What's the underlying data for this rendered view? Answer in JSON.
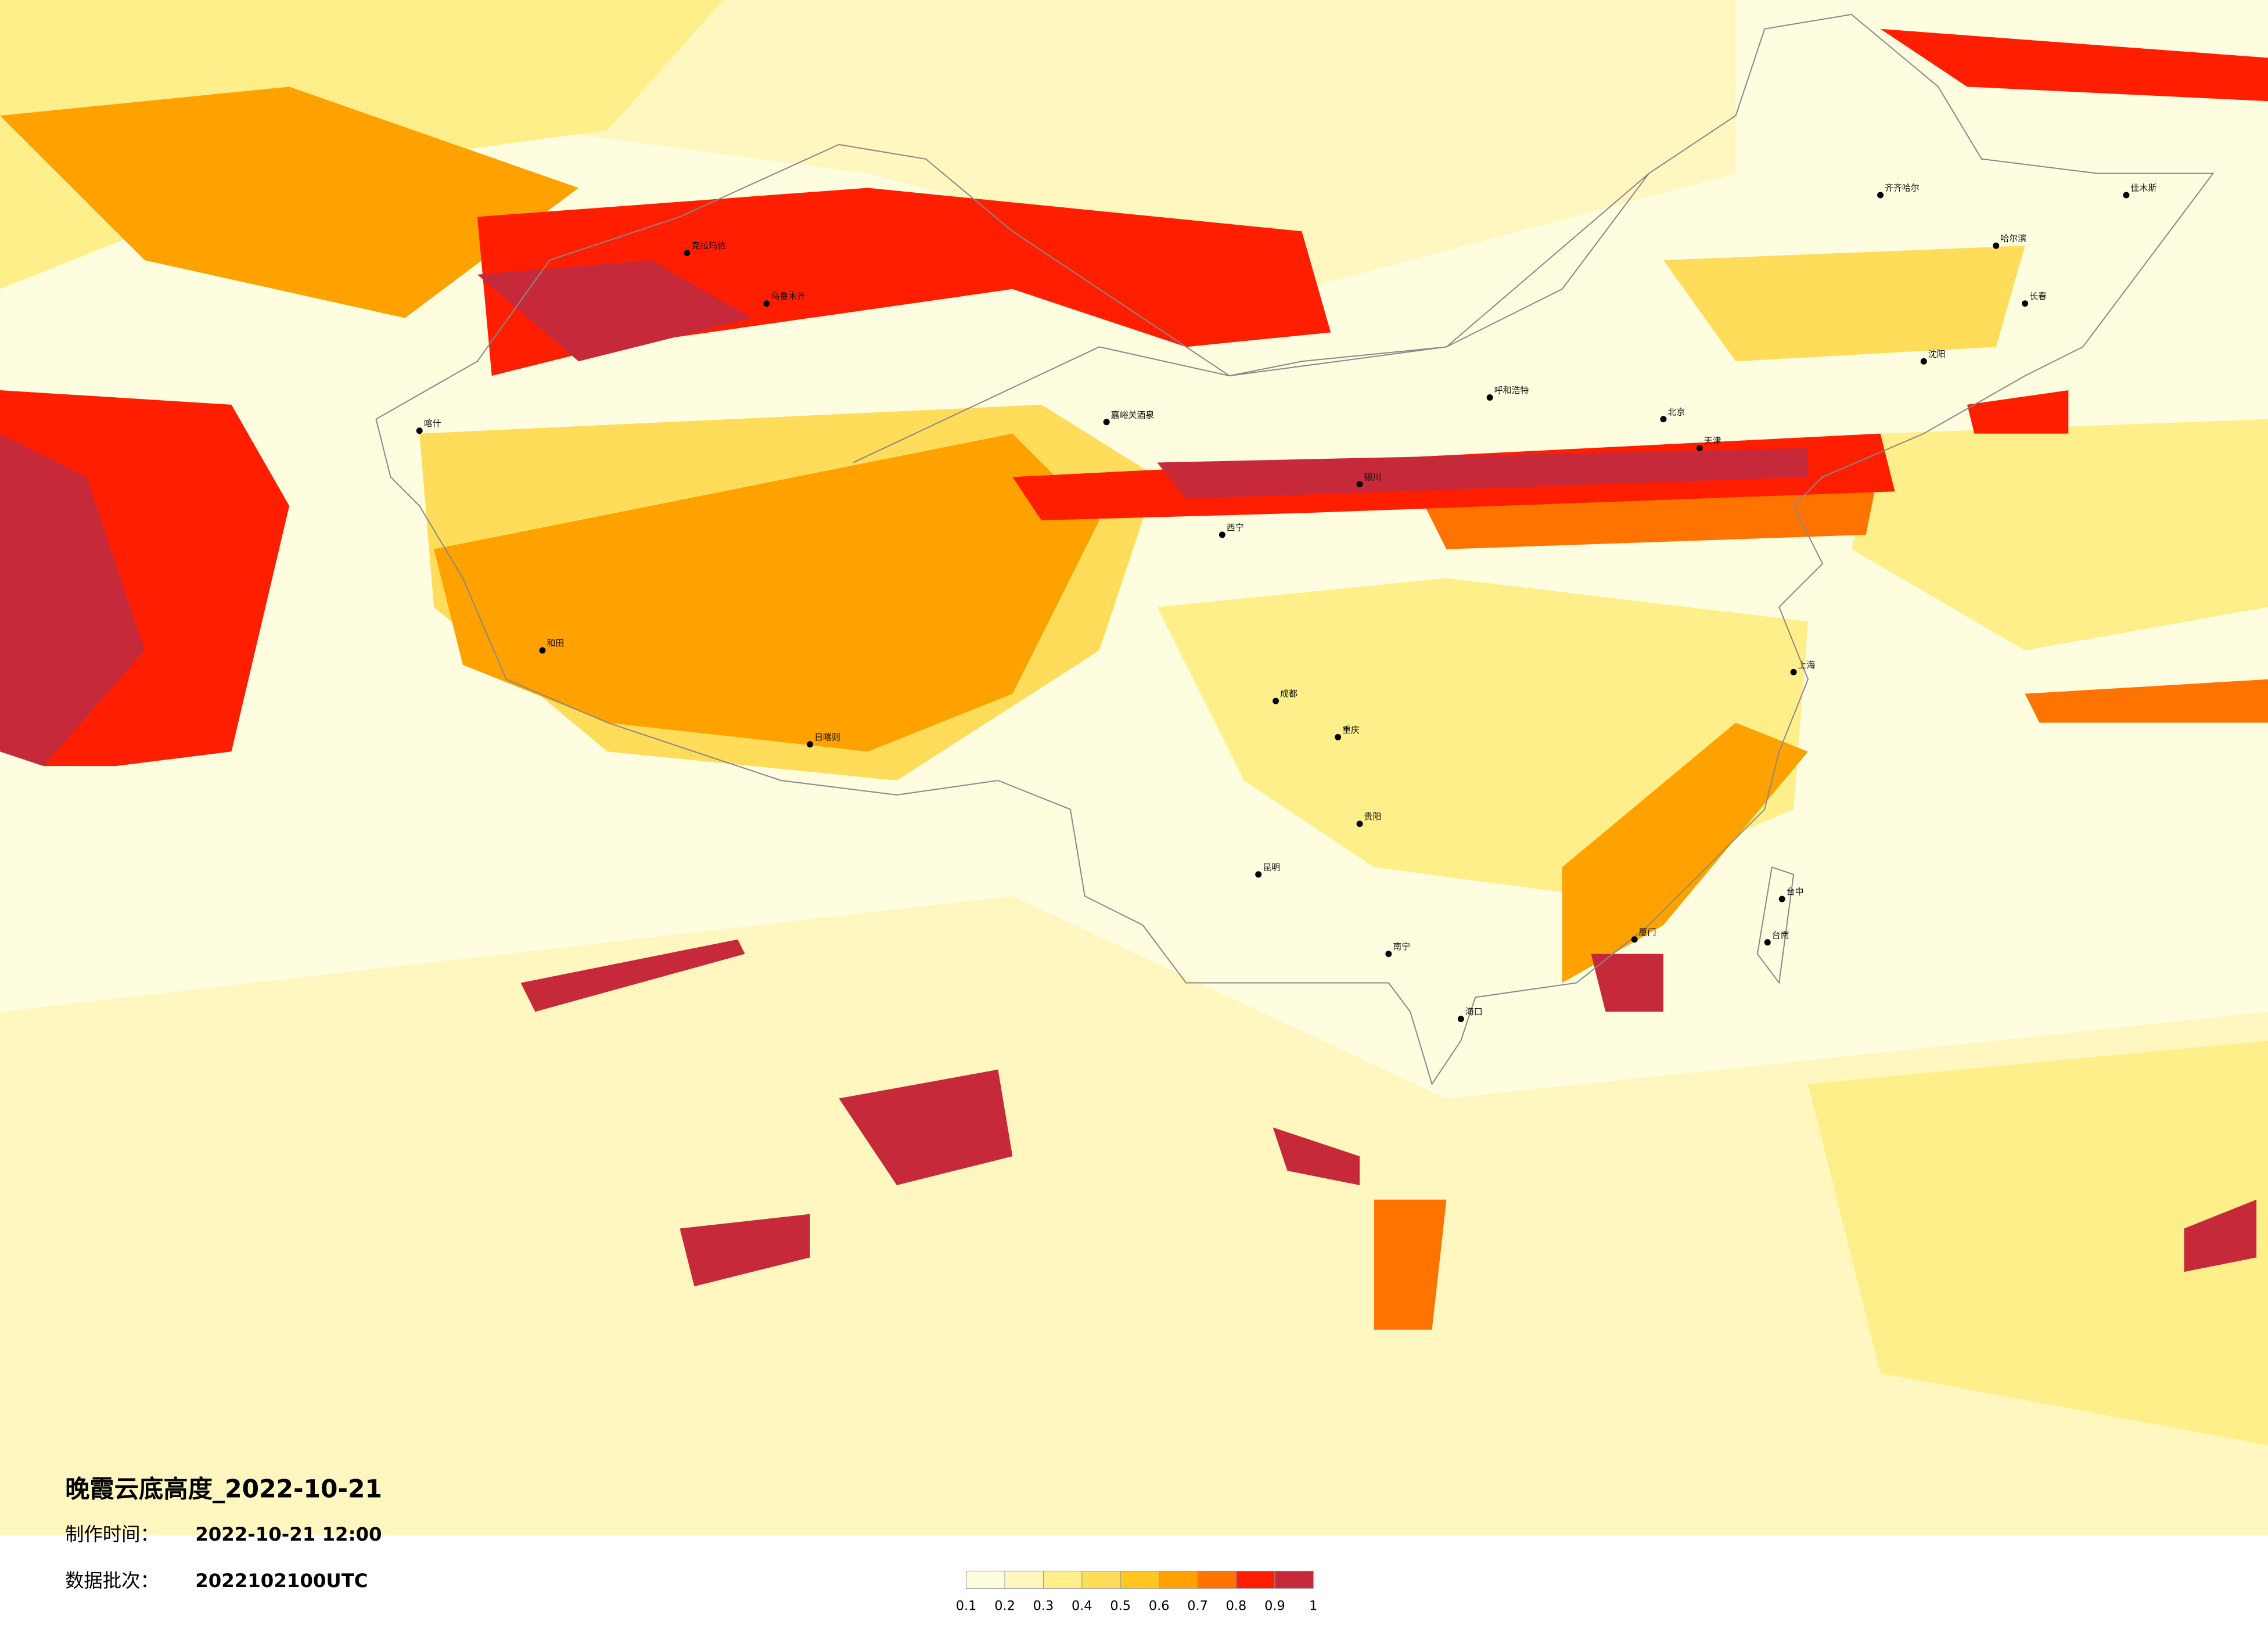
{
  "header": {
    "title": "晚霞云底高度_2022-10-21",
    "made_label": "制作时间：",
    "made_value": "2022-10-21 12:00",
    "batch_label": "数据批次：",
    "batch_value": "2022102100UTC"
  },
  "legend": {
    "colors": [
      "#fffde0",
      "#fff7bf",
      "#ffef8a",
      "#ffdc5a",
      "#ffc61e",
      "#ffa200",
      "#ff7400",
      "#ff1e00",
      "#c62a3a"
    ],
    "ticks": [
      0.1,
      0.2,
      0.3,
      0.4,
      0.5,
      0.6,
      0.7,
      0.8,
      0.9,
      1
    ]
  },
  "cities": [
    {
      "name": "克拉玛依"
    },
    {
      "name": "乌鲁木齐"
    },
    {
      "name": "喀什"
    },
    {
      "name": "和田"
    },
    {
      "name": "日喀则"
    },
    {
      "name": "嘉峪关酒泉"
    },
    {
      "name": "西宁"
    },
    {
      "name": "银川"
    },
    {
      "name": "呼和浩特"
    },
    {
      "name": "北京"
    },
    {
      "name": "天津"
    },
    {
      "name": "哈尔滨"
    },
    {
      "name": "长春"
    },
    {
      "name": "沈阳"
    },
    {
      "name": "成都"
    },
    {
      "name": "重庆"
    },
    {
      "name": "昆明"
    },
    {
      "name": "贵阳"
    },
    {
      "name": "南宁"
    },
    {
      "name": "海口"
    },
    {
      "name": "厦门"
    },
    {
      "name": "台中"
    },
    {
      "name": "台南"
    },
    {
      "name": "上海"
    },
    {
      "name": "佳木斯"
    },
    {
      "name": "齐齐哈尔"
    }
  ]
}
